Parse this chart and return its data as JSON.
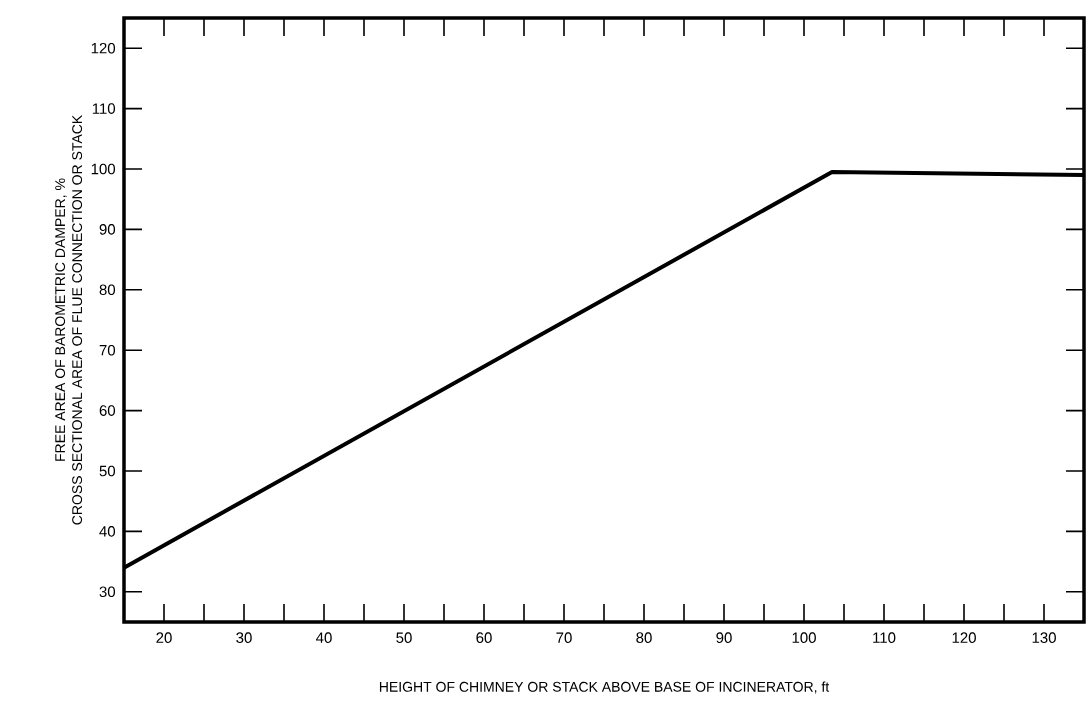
{
  "chart_data": {
    "type": "line",
    "xlabel": "HEIGHT OF CHIMNEY OR STACK ABOVE BASE OF INCINERATOR, ft",
    "ylabel": "FREE AREA OF BAROMETRIC DAMPER, % CROSS SECTIONAL AREA OF FLUE CONNECTION OR STACK",
    "x": [
      15,
      103.5,
      135
    ],
    "values": [
      34,
      99.5,
      99
    ],
    "color": "#000000",
    "xlim": [
      15,
      135
    ],
    "ylim": [
      25,
      125
    ],
    "xticks": [
      20,
      30,
      40,
      50,
      60,
      70,
      80,
      90,
      100,
      110,
      120,
      130
    ],
    "yticks": [
      30,
      40,
      50,
      60,
      70,
      80,
      90,
      100,
      110,
      120
    ]
  }
}
